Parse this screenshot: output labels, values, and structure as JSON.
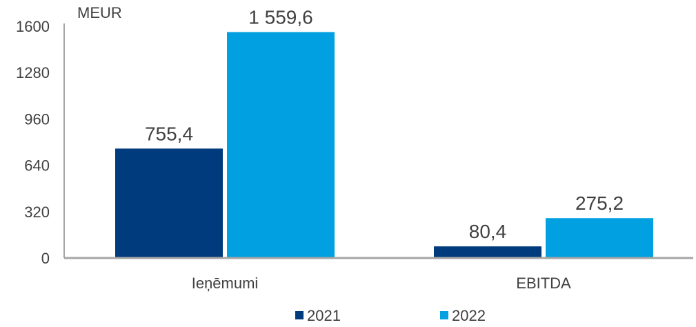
{
  "chart_data": {
    "type": "bar",
    "unit_label": "MEUR",
    "categories": [
      "Ieņēmumi",
      "EBITDA"
    ],
    "series": [
      {
        "name": "2021",
        "color": "#003c7d",
        "values": [
          755.4,
          80.4
        ],
        "labels": [
          "755,4",
          "80,4"
        ]
      },
      {
        "name": "2022",
        "color": "#00a0e1",
        "values": [
          1559.6,
          275.2
        ],
        "labels": [
          "1 559,6",
          "275,2"
        ]
      }
    ],
    "ylim": [
      0,
      1600
    ],
    "yticks": [
      0,
      320,
      640,
      960,
      1280,
      1600
    ],
    "grid": false,
    "legend_position": "bottom",
    "axis_color": "#a6a6a6",
    "text_color": "#404040"
  }
}
